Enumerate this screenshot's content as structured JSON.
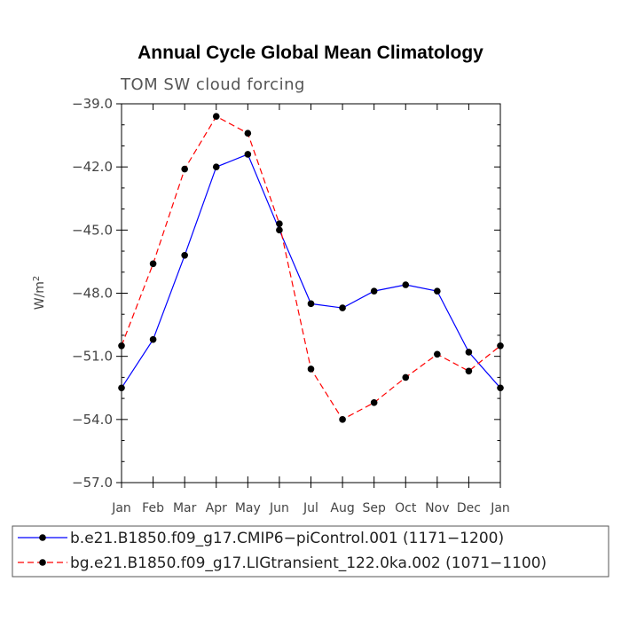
{
  "chart_data": {
    "type": "line",
    "title": "Annual Cycle Global Mean Climatology",
    "subtitle": "TOM SW cloud forcing",
    "ylabel_main": "W/m",
    "ylabel_sup": "2",
    "xlabel": "",
    "categories": [
      "Jan",
      "Feb",
      "Mar",
      "Apr",
      "May",
      "Jun",
      "Jul",
      "Aug",
      "Sep",
      "Oct",
      "Nov",
      "Dec",
      "Jan"
    ],
    "ylim": [
      -57.0,
      -39.0
    ],
    "yticks": [
      -39.0,
      -42.0,
      -45.0,
      -48.0,
      -51.0,
      -54.0,
      -57.0
    ],
    "ytick_labels": [
      "−39.0",
      "−42.0",
      "−45.0",
      "−48.0",
      "−51.0",
      "−54.0",
      "−57.0"
    ],
    "legend_position": "bottom",
    "series": [
      {
        "name": "b.e21.B1850.f09_g17.CMIP6−piControl.001 (1171−1200)",
        "color": "#0000ff",
        "dash": "solid",
        "values": [
          -52.5,
          -50.2,
          -46.2,
          -42.0,
          -41.4,
          -45.0,
          -48.5,
          -48.7,
          -47.9,
          -47.6,
          -47.9,
          -50.8,
          -52.5
        ]
      },
      {
        "name": "bg.e21.B1850.f09_g17.LIGtransient_122.0ka.002 (1071−1100)",
        "color": "#ff0000",
        "dash": "dashed",
        "values": [
          -50.5,
          -46.6,
          -42.1,
          -39.6,
          -40.4,
          -44.7,
          -51.6,
          -54.0,
          -53.2,
          -52.0,
          -50.9,
          -51.7,
          -50.5
        ]
      }
    ]
  }
}
